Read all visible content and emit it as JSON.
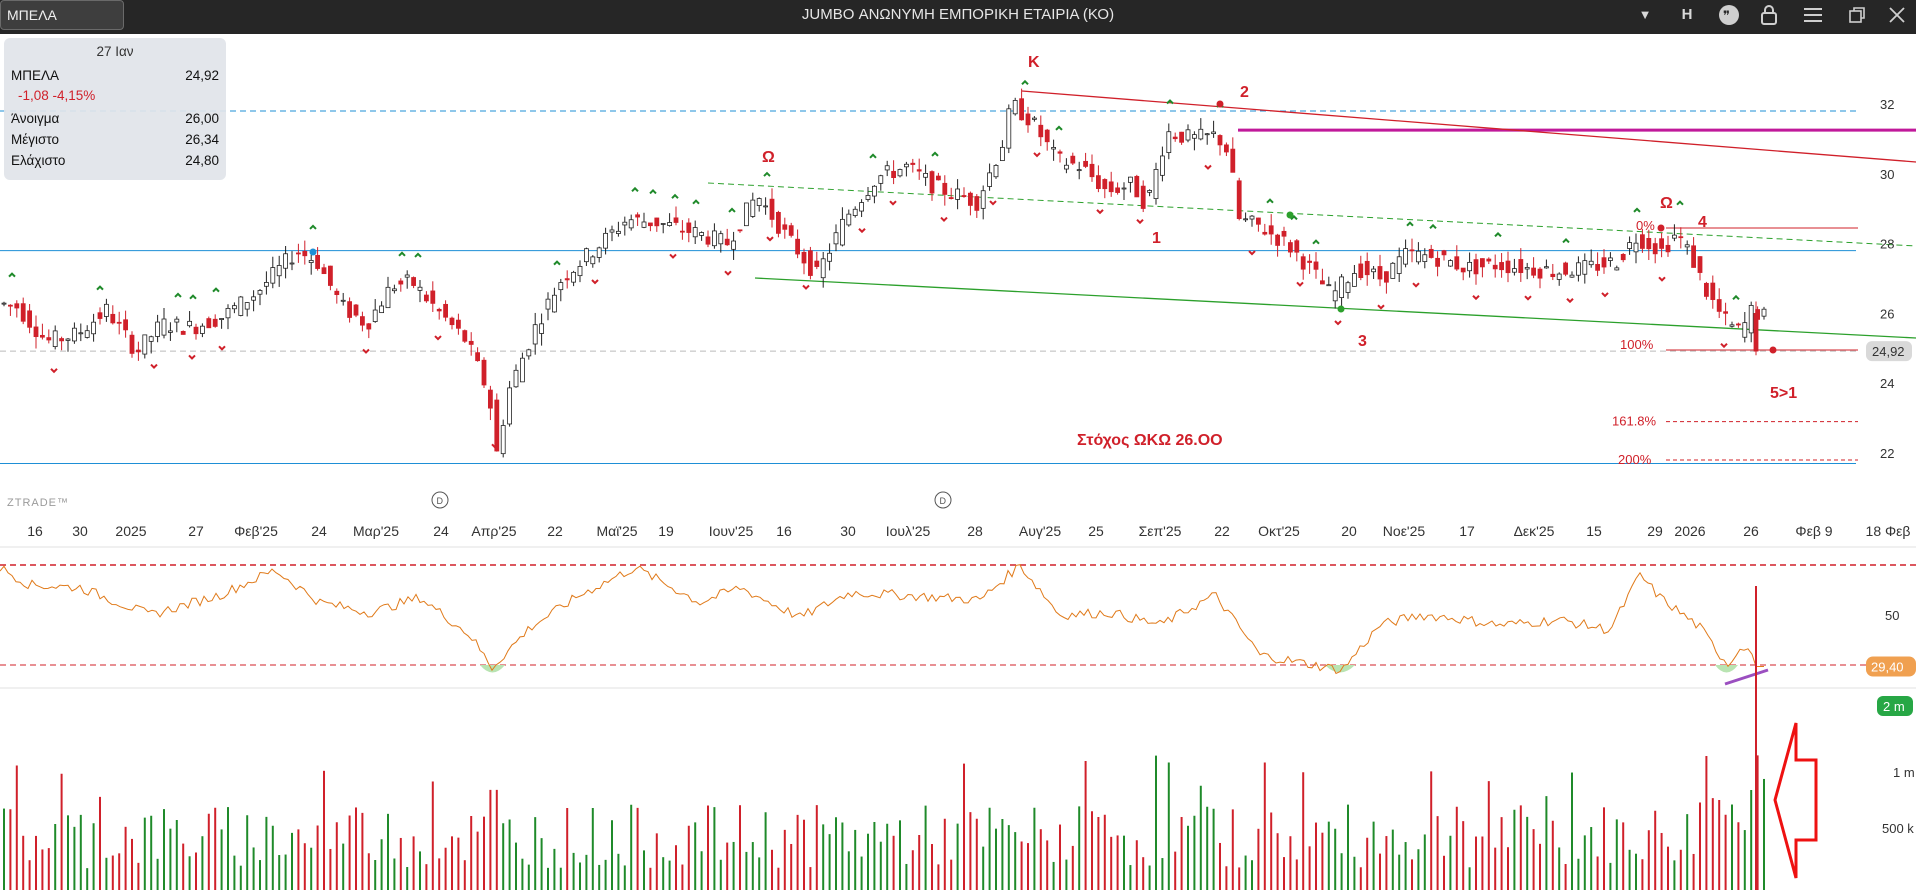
{
  "window": {
    "symbol_tab": "ΜΠΕΛΑ",
    "title": "JUMBO ΑΝΩΝΥΜΗ ΕΜΠΟΡΙΚΗ ΕΤΑΙΡΙΑ (ΚΟ)",
    "interval_label": "H",
    "icons": [
      "chevron-down-icon",
      "chat-icon",
      "lock-icon",
      "menu-icon",
      "restore-icon",
      "close-icon"
    ]
  },
  "info_panel": {
    "date": "27 Ιαν",
    "symbol": "ΜΠΕΛΑ",
    "last": "24,92",
    "change": "-1,08 -4,15%",
    "rows": [
      {
        "label": "Άνοιγμα",
        "value": "26,00"
      },
      {
        "label": "Μέγιστο",
        "value": "26,34"
      },
      {
        "label": "Ελάχιστο",
        "value": "24,80"
      }
    ]
  },
  "watermark": "ZTRADE™",
  "colors": {
    "up": "#1f8a2a",
    "down": "#d0202a",
    "hline": "#1e8fd6",
    "rsi": "#e07a1a",
    "magenta": "#c0199a",
    "trend_green": "#2ca02c",
    "price_label": "#d9d9d9",
    "rsi_label": "#f0a050",
    "vol_label": "#27a745"
  },
  "chart_data": [
    {
      "type": "candlestick",
      "name": "price",
      "y_ticks": [
        22,
        24,
        26,
        28,
        30,
        32
      ],
      "ylim": [
        21.4,
        33.6
      ],
      "x_tick_labels": [
        "16",
        "30",
        "2025",
        "27",
        "Φεβ'25",
        "24",
        "Μαρ'25",
        "24",
        "Απρ'25",
        "22",
        "Μαϊ'25",
        "19",
        "Ιουν'25",
        "16",
        "30",
        "Ιουλ'25",
        "28",
        "Αυγ'25",
        "25",
        "Σεπ'25",
        "22",
        "Οκτ'25",
        "20",
        "Νοε'25",
        "17",
        "Δεκ'25",
        "15",
        "29",
        "2026",
        "26",
        "Φεβ 9",
        "18 Φεβ"
      ],
      "last_price": 24.92,
      "last_price_label": "24,92",
      "horizontal_lines": [
        {
          "y": 31.8,
          "style": "dashed",
          "color": "#1e8fd6"
        },
        {
          "y": 27.8,
          "style": "solid",
          "color": "#1e8fd6"
        },
        {
          "y": 21.7,
          "style": "solid",
          "color": "#1e8fd6"
        },
        {
          "y": 24.92,
          "style": "dashed",
          "color": "#bbbbbb"
        },
        {
          "y": 31.25,
          "style": "solid",
          "color": "#c0199a"
        }
      ],
      "fib_levels": [
        {
          "label": "0%",
          "y": 28.5
        },
        {
          "label": "100%",
          "y": 25.1
        },
        {
          "label": "161.8%",
          "y": 22.9
        },
        {
          "label": "200%",
          "y": 21.8
        }
      ],
      "wave_labels": [
        "K",
        "Ω",
        "Ω",
        "1",
        "2",
        "3",
        "4",
        "5>1"
      ],
      "annotation": "Στόχος ΩΚΩ 26.ΟΟ"
    },
    {
      "type": "line",
      "name": "rsi",
      "y_ticks": [
        50
      ],
      "levels": [
        70,
        30
      ],
      "last_value_label": "29,40"
    },
    {
      "type": "bar",
      "name": "volume",
      "y_tick_labels": [
        "500 k",
        "1 m",
        "2 m"
      ]
    }
  ]
}
